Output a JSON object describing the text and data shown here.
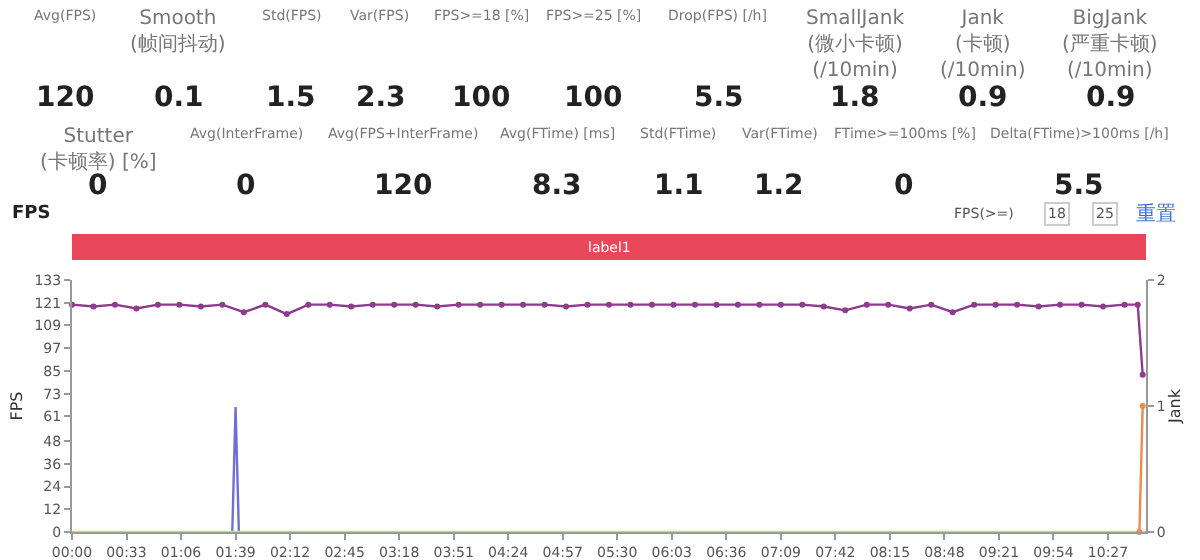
{
  "chart_data": [
    {
      "type": "other",
      "categories": [
        "Avg(FPS)",
        "Smooth(帧间抖动)",
        "Std(FPS)",
        "Var(FPS)",
        "FPS>=18 [%]",
        "FPS>=25 [%]",
        "Drop(FPS) [/h]",
        "SmallJank(微小卡顿)\n(/10min)",
        "Jank(卡顿)\n(/10min)",
        "BigJank(严重卡顿)\n(/10min)"
      ],
      "values": [
        120,
        0.1,
        1.5,
        2.3,
        100,
        100,
        5.5,
        1.8,
        0.9,
        0.9
      ],
      "data_labels": true
    },
    {
      "type": "other",
      "categories": [
        "Stutter(卡顿率) [%]",
        "Avg(InterFrame)",
        "Avg(FPS+InterFrame)",
        "Avg(FTime) [ms]",
        "Std(FTime)",
        "Var(FTime)",
        "FTime>=100ms [%]",
        "Delta(FTime)>100ms [/h]"
      ],
      "values": [
        0,
        0,
        120,
        8.3,
        1.1,
        1.2,
        0,
        5.5
      ],
      "data_labels": true
    },
    {
      "type": "line",
      "title": "FPS",
      "ylabel": "FPS",
      "y2label": "Jank",
      "annotations": [
        "FPS(>=)",
        "18",
        "25",
        "重置"
      ],
      "bands": [
        {
          "axis": "x",
          "from": 0,
          "to": 650,
          "label": "label1"
        }
      ],
      "xlim": [
        0,
        650
      ],
      "xticks": [
        {
          "value": 0,
          "label": "00:00"
        },
        {
          "value": 33,
          "label": "00:33"
        },
        {
          "value": 66,
          "label": "01:06"
        },
        {
          "value": 99,
          "label": "01:39"
        },
        {
          "value": 132,
          "label": "02:12"
        },
        {
          "value": 165,
          "label": "02:45"
        },
        {
          "value": 198,
          "label": "03:18"
        },
        {
          "value": 231,
          "label": "03:51"
        },
        {
          "value": 264,
          "label": "04:24"
        },
        {
          "value": 297,
          "label": "04:57"
        },
        {
          "value": 330,
          "label": "05:30"
        },
        {
          "value": 363,
          "label": "06:03"
        },
        {
          "value": 396,
          "label": "06:36"
        },
        {
          "value": 429,
          "label": "07:09"
        },
        {
          "value": 462,
          "label": "07:42"
        },
        {
          "value": 495,
          "label": "08:15"
        },
        {
          "value": 528,
          "label": "08:48"
        },
        {
          "value": 561,
          "label": "09:21"
        },
        {
          "value": 594,
          "label": "09:54"
        },
        {
          "value": 627,
          "label": "10:27"
        }
      ],
      "ylim": [
        0,
        133
      ],
      "yticks": [
        0,
        12,
        24,
        36,
        48,
        61,
        73,
        85,
        97,
        109,
        121,
        133
      ],
      "y2lim": [
        0,
        2
      ],
      "y2ticks": [
        0,
        1,
        2
      ],
      "series": [
        {
          "color": "#8e3a8e",
          "marker": "circle",
          "x": [
            0,
            13,
            26,
            39,
            52,
            65,
            78,
            91,
            104,
            117,
            130,
            143,
            156,
            169,
            182,
            195,
            208,
            221,
            234,
            247,
            260,
            273,
            286,
            299,
            312,
            325,
            338,
            351,
            364,
            377,
            390,
            403,
            416,
            429,
            442,
            455,
            468,
            481,
            494,
            507,
            520,
            533,
            546,
            559,
            572,
            585,
            598,
            611,
            624,
            637,
            645,
            648
          ],
          "values": [
            120,
            119,
            120,
            118,
            120,
            120,
            119,
            120,
            116,
            120,
            115,
            120,
            120,
            119,
            120,
            120,
            120,
            119,
            120,
            120,
            120,
            120,
            120,
            119,
            120,
            120,
            120,
            120,
            120,
            120,
            120,
            120,
            120,
            120,
            120,
            119,
            117,
            120,
            120,
            118,
            120,
            116,
            120,
            120,
            120,
            119,
            120,
            120,
            119,
            120,
            120,
            83
          ]
        },
        {
          "color": "#6f6fd6",
          "x": [
            97,
            99,
            101
          ],
          "values": [
            0,
            66,
            0
          ]
        },
        {
          "color": "#e3d46a",
          "x": [
            0,
            650
          ],
          "values": [
            0,
            0
          ]
        },
        {
          "color": "#f08a4b",
          "axis": "y2",
          "marker": "circle",
          "x": [
            646,
            648
          ],
          "values": [
            0,
            1
          ]
        }
      ]
    }
  ]
}
